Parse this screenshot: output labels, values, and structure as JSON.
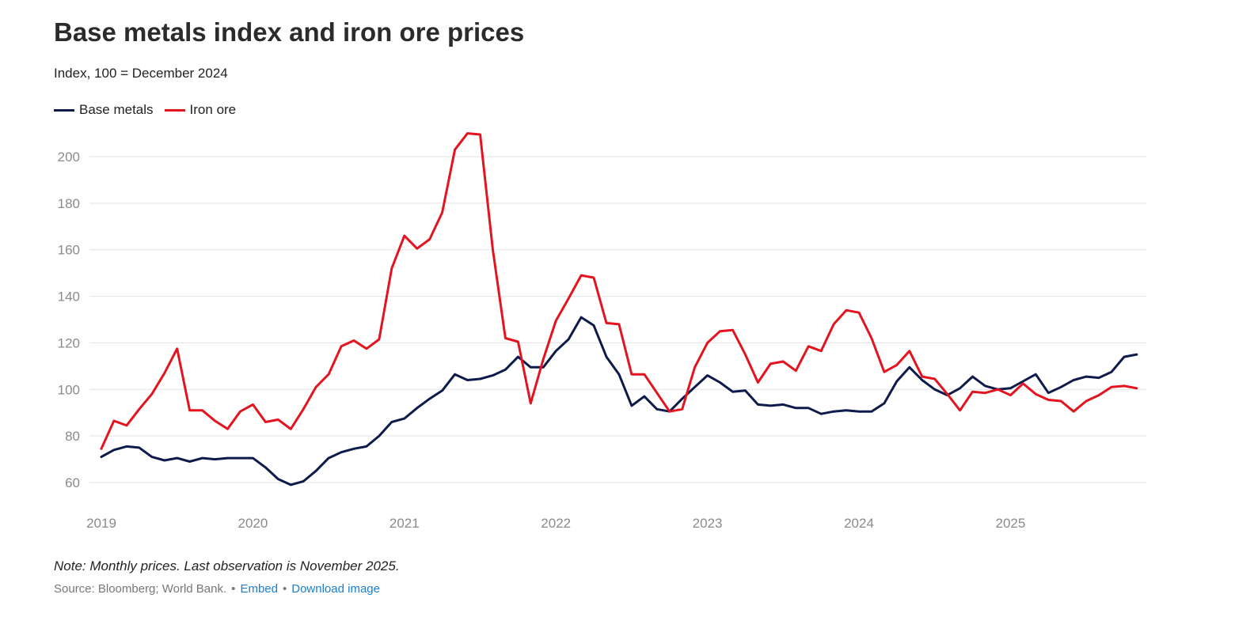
{
  "title": "Base metals index and iron ore prices",
  "subtitle": "Index, 100 = December 2024",
  "legend": [
    {
      "label": "Base metals",
      "color": "#0d1b4b"
    },
    {
      "label": "Iron ore",
      "color": "#e3141f"
    }
  ],
  "note": "Note: Monthly prices. Last observation is November 2025.",
  "source": {
    "text": "Source: Bloomberg; World Bank.",
    "separator": "•",
    "embed_label": "Embed",
    "download_label": "Download image",
    "link_color": "#1a7fd1"
  },
  "chart_data": {
    "type": "line",
    "title": "Base metals index and iron ore prices",
    "ylabel": "",
    "xlabel": "",
    "ylim": [
      50,
      212
    ],
    "yticks": [
      60,
      80,
      100,
      120,
      140,
      160,
      180,
      200
    ],
    "xticks": [
      "2019",
      "2020",
      "2021",
      "2022",
      "2023",
      "2024",
      "2025"
    ],
    "x_start": "2019-01",
    "x_end": "2025-11",
    "grid": true,
    "legend_position": "top-left",
    "series": [
      {
        "name": "Base metals",
        "color": "#0d1b4b",
        "values": [
          71,
          74,
          75.5,
          75,
          71,
          69.5,
          70.5,
          69,
          70.5,
          70,
          70.5,
          70.5,
          70.5,
          66.5,
          61.5,
          59,
          60.5,
          65,
          70.5,
          73,
          74.5,
          75.5,
          80,
          86,
          87.5,
          92,
          96,
          99.5,
          106.5,
          104,
          104.5,
          106,
          108.5,
          114,
          109.5,
          109.5,
          116.5,
          121.5,
          131,
          127.5,
          114,
          106.5,
          93,
          97,
          91.5,
          90.5,
          96,
          101,
          106,
          103,
          99,
          99.5,
          93.5,
          93,
          93.5,
          92,
          92,
          89.5,
          90.5,
          91,
          90.5,
          90.5,
          94,
          103.5,
          109.5,
          104,
          100,
          97.5,
          100.5,
          105.5,
          101.5,
          100,
          100.5,
          103.5,
          106.5,
          98.5,
          101,
          104,
          105.5,
          105,
          107.5,
          114,
          115
        ]
      },
      {
        "name": "Iron ore",
        "color": "#e3141f",
        "values": [
          74.5,
          86.5,
          84.5,
          91.5,
          98,
          107,
          117.5,
          91,
          91,
          86.5,
          83,
          90.5,
          93.5,
          86,
          87,
          83,
          91.5,
          101,
          106.5,
          118.5,
          121,
          117.5,
          121.5,
          152,
          166,
          160.5,
          164.5,
          176,
          203,
          210,
          209.5,
          160,
          122,
          120.5,
          94,
          113,
          129.5,
          139,
          149,
          148,
          128.5,
          128,
          106.5,
          106.5,
          98.5,
          90.5,
          91.5,
          109.5,
          120,
          125,
          125.5,
          115,
          103,
          111,
          112,
          108,
          118.5,
          116.5,
          128,
          134,
          133,
          122,
          107.5,
          110.5,
          116.5,
          105.5,
          104.5,
          98,
          91,
          99,
          98.5,
          100,
          97.5,
          102.5,
          98,
          95.5,
          95,
          90.5,
          95,
          97.5,
          101,
          101.5,
          100.5
        ]
      }
    ]
  }
}
